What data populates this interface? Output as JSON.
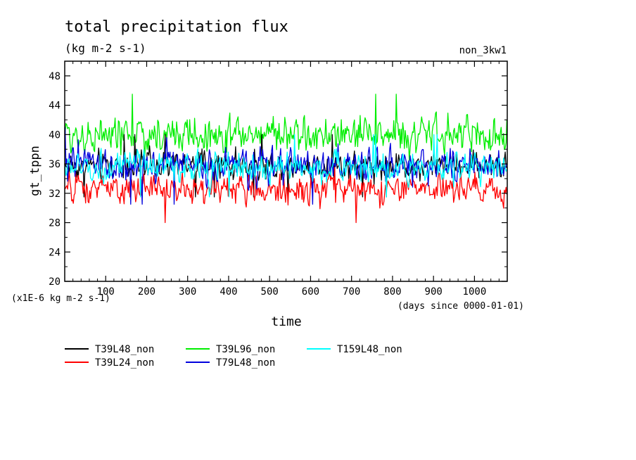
{
  "chart_data": {
    "type": "line",
    "title": "total precipitation flux",
    "subtitle": "(kg m-2 s-1)",
    "run_label": "non_3kw1",
    "ylabel": "gt_tppn",
    "xlabel": "time",
    "y_scale_note": "(x1E-6 kg m-2 s-1)",
    "x_units_note": "(days since 0000-01-01)",
    "xlim": [
      0,
      1080
    ],
    "ylim": [
      20,
      50
    ],
    "x_ticks": [
      100,
      200,
      300,
      400,
      500,
      600,
      700,
      800,
      900,
      1000
    ],
    "x_tick_labels": [
      "100",
      "200",
      "300",
      "400",
      "500",
      "600",
      "700",
      "800",
      "900",
      "1000"
    ],
    "y_ticks": [
      20,
      24,
      28,
      32,
      36,
      40,
      44,
      48
    ],
    "y_tick_labels": [
      "20",
      "24",
      "28",
      "32",
      "36",
      "40",
      "44",
      "48"
    ],
    "grid": false,
    "series": [
      {
        "name": "T39L48_non",
        "color": "#000000",
        "approx_mean": 35.8,
        "approx_min": 31.5,
        "approx_max": 40.0
      },
      {
        "name": "T39L96_non",
        "color": "#00ee00",
        "approx_mean": 40.0,
        "approx_min": 36.5,
        "approx_max": 45.5
      },
      {
        "name": "T159L48_non",
        "color": "#00ffff",
        "approx_mean": 35.5,
        "approx_min": 31.5,
        "approx_max": 40.0
      },
      {
        "name": "T39L24_non",
        "color": "#ff0000",
        "approx_mean": 32.5,
        "approx_min": 28.0,
        "approx_max": 35.5
      },
      {
        "name": "T79L48_non",
        "color": "#0000dd",
        "approx_mean": 35.8,
        "approx_min": 30.5,
        "approx_max": 41.0
      }
    ]
  }
}
